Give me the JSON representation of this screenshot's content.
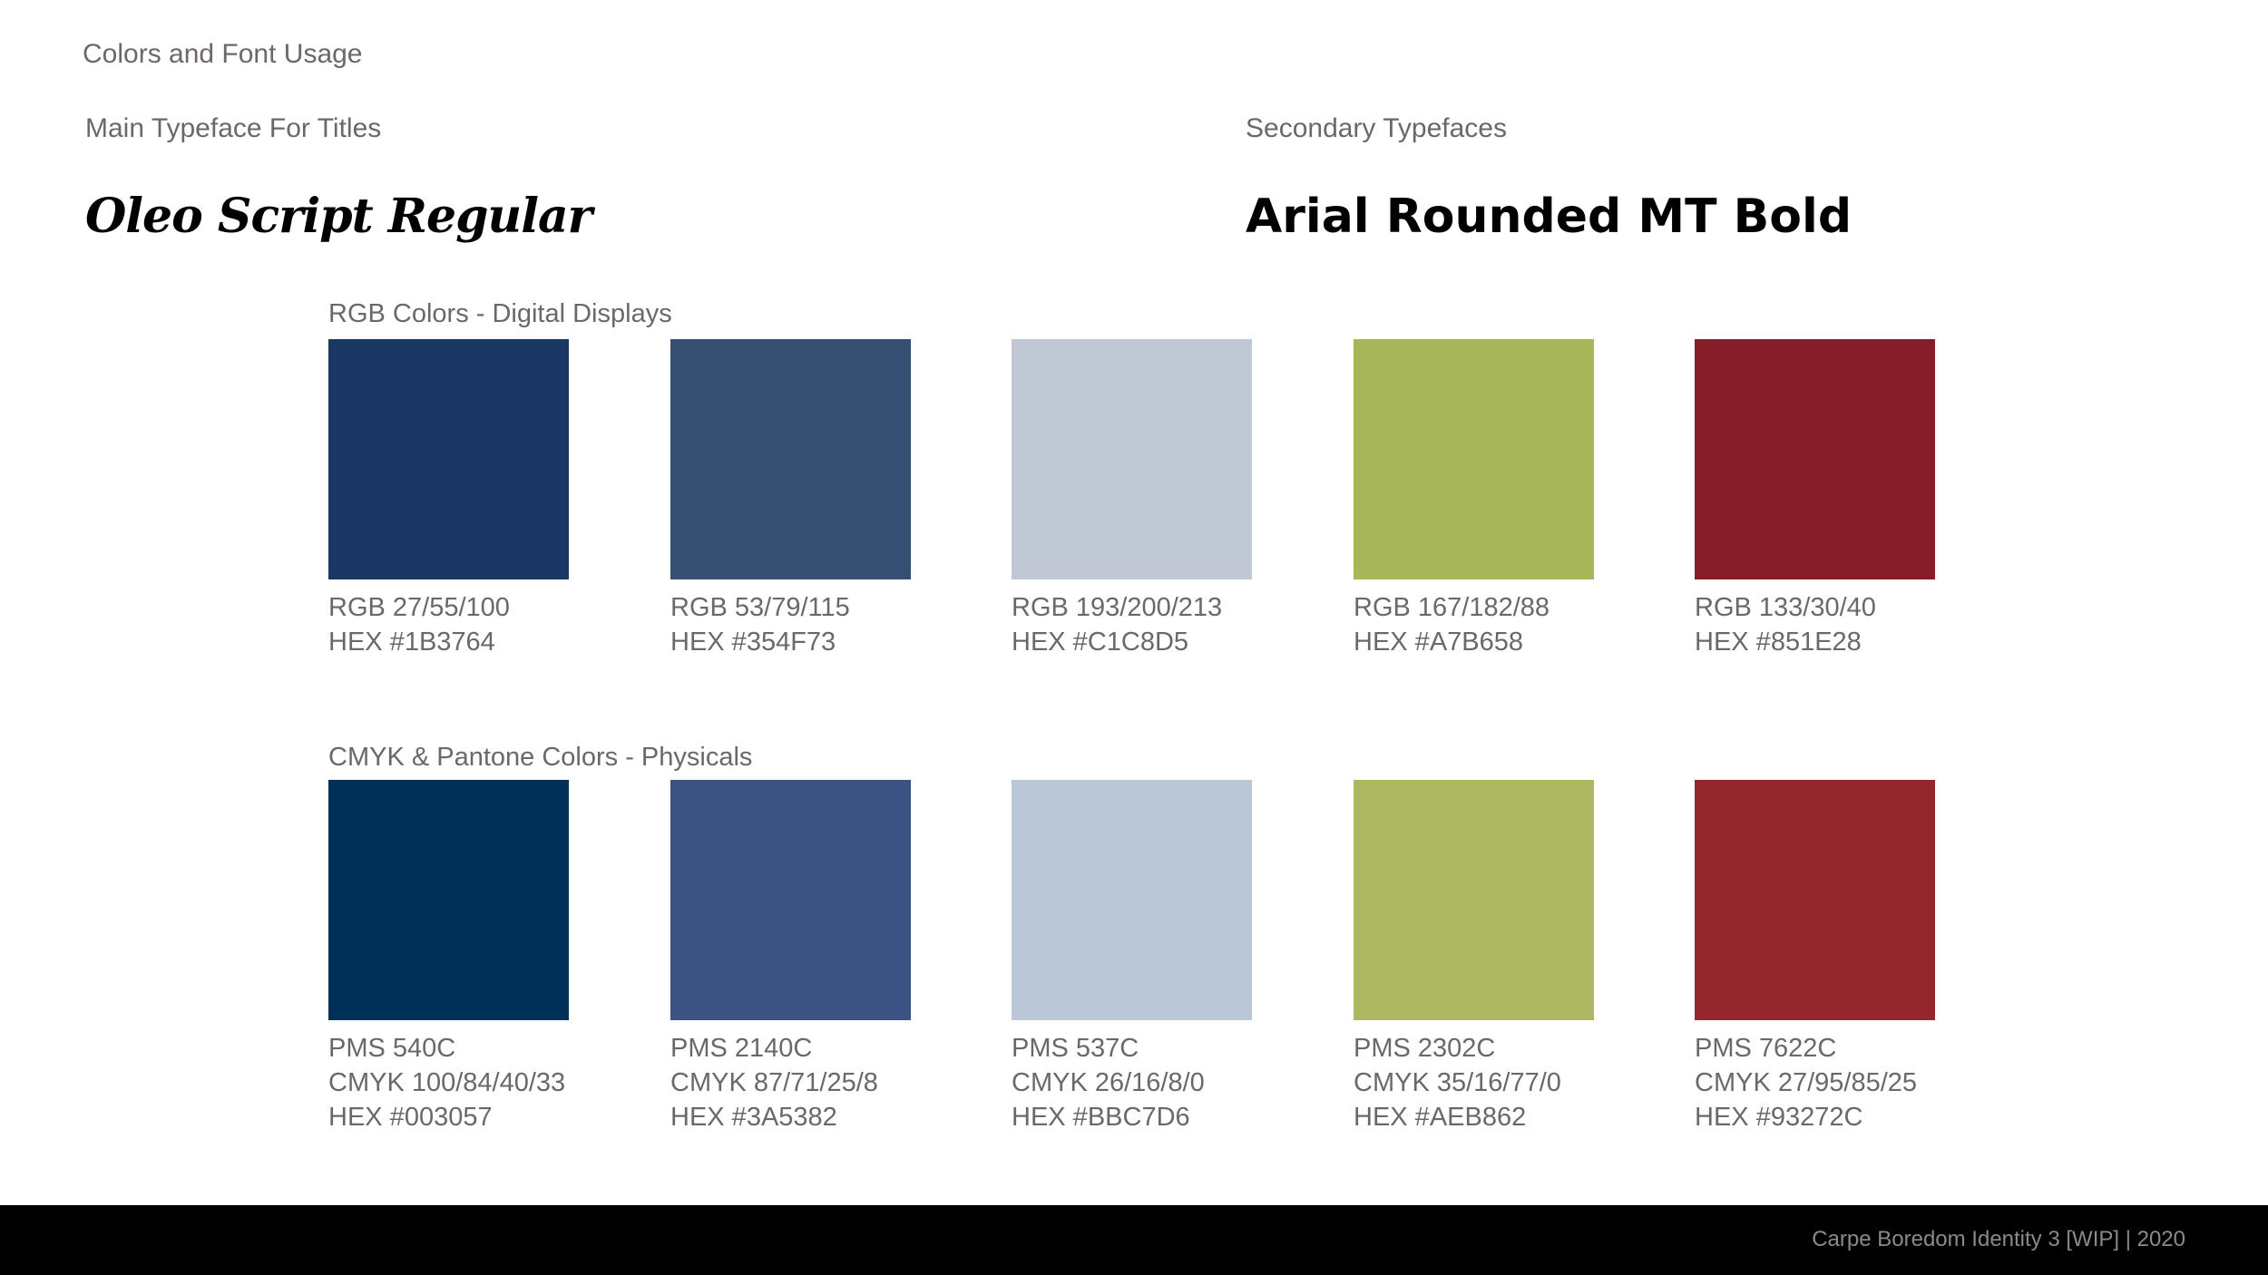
{
  "page": {
    "title": "Colors and Font Usage"
  },
  "typefaces": {
    "main_label": "Main Typeface For Titles",
    "main_name": "Oleo Script Regular",
    "secondary_label": "Secondary Typefaces",
    "secondary_name": "Arial Rounded MT Bold"
  },
  "rgb_section": {
    "label": "RGB Colors - Digital Displays",
    "swatches": [
      {
        "color": "#1B3764",
        "line1": "RGB 27/55/100",
        "line2": "HEX #1B3764"
      },
      {
        "color": "#354F73",
        "line1": "RGB 53/79/115",
        "line2": "HEX #354F73"
      },
      {
        "color": "#C1C8D5",
        "line1": "RGB 193/200/213",
        "line2": "HEX #C1C8D5"
      },
      {
        "color": "#A7B658",
        "line1": "RGB 167/182/88",
        "line2": "HEX #A7B658"
      },
      {
        "color": "#851E28",
        "line1": "RGB 133/30/40",
        "line2": "HEX #851E28"
      }
    ]
  },
  "cmyk_section": {
    "label": "CMYK & Pantone Colors - Physicals",
    "swatches": [
      {
        "color": "#003057",
        "line1": "PMS 540C",
        "line2": "CMYK 100/84/40/33",
        "line3": "HEX #003057"
      },
      {
        "color": "#3A5382",
        "line1": "PMS 2140C",
        "line2": "CMYK 87/71/25/8",
        "line3": "HEX #3A5382"
      },
      {
        "color": "#BBC7D6",
        "line1": "PMS 537C",
        "line2": "CMYK 26/16/8/0",
        "line3": "HEX #BBC7D6"
      },
      {
        "color": "#AEB862",
        "line1": "PMS 2302C",
        "line2": "CMYK 35/16/77/0",
        "line3": "HEX #AEB862"
      },
      {
        "color": "#93272C",
        "line1": "PMS 7622C",
        "line2": "CMYK 27/95/85/25",
        "line3": "HEX #93272C"
      }
    ]
  },
  "footer": {
    "text": "Carpe Boredom Identity 3 [WIP]  |  2020"
  }
}
